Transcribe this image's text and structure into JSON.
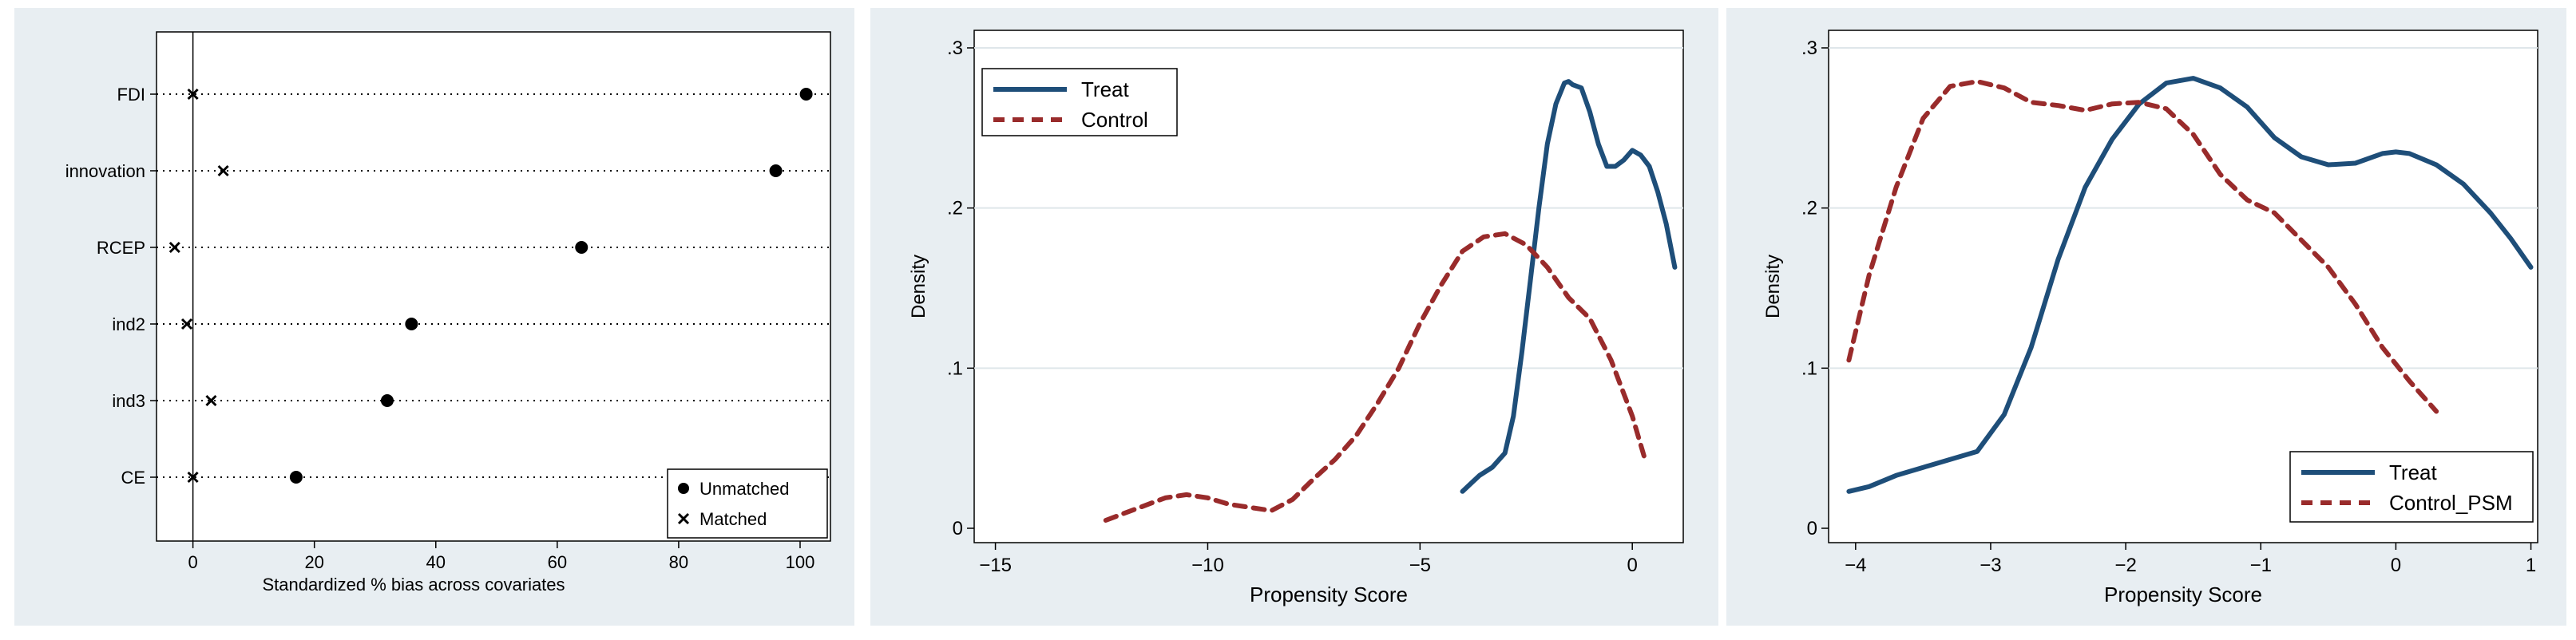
{
  "colors": {
    "background": "#e8eef2",
    "treat": "#1e4e79",
    "control": "#992b2b",
    "grid": "#dfe6ea"
  },
  "chart_data": [
    {
      "type": "scatter",
      "xlabel": "Standardized % bias across covariates",
      "ylabel": "",
      "xlim": [
        -6,
        105
      ],
      "xticks": [
        0,
        20,
        40,
        60,
        80,
        100
      ],
      "grid": false,
      "legend_position": "bottom-right",
      "categories": [
        "FDI",
        "innovation",
        "RCEP",
        "ind2",
        "ind3",
        "CE"
      ],
      "series": [
        {
          "name": "Unmatched",
          "marker": "circle",
          "values": [
            101,
            96,
            64,
            36,
            32,
            17
          ]
        },
        {
          "name": "Matched",
          "marker": "x",
          "values": [
            0,
            5,
            -3,
            -1,
            3,
            0
          ]
        }
      ]
    },
    {
      "type": "line",
      "xlabel": "Propensity Score",
      "ylabel": "Density",
      "xlim": [
        -15.5,
        1.2
      ],
      "ylim": [
        0,
        0.3
      ],
      "xticks": [
        -15,
        -10,
        -5,
        0
      ],
      "yticks": [
        0,
        0.1,
        0.2,
        0.3
      ],
      "grid": true,
      "legend_position": "top-left",
      "series": [
        {
          "name": "Treat",
          "style": "solid",
          "x": [
            -4.0,
            -3.8,
            -3.6,
            -3.3,
            -3.0,
            -2.8,
            -2.6,
            -2.4,
            -2.2,
            -2.0,
            -1.8,
            -1.6,
            -1.5,
            -1.4,
            -1.2,
            -1.0,
            -0.8,
            -0.6,
            -0.4,
            -0.2,
            0.0,
            0.2,
            0.4,
            0.6,
            0.8,
            1.0
          ],
          "y": [
            0.023,
            0.028,
            0.033,
            0.038,
            0.047,
            0.07,
            0.11,
            0.155,
            0.2,
            0.24,
            0.265,
            0.278,
            0.279,
            0.277,
            0.275,
            0.26,
            0.24,
            0.226,
            0.226,
            0.23,
            0.236,
            0.233,
            0.226,
            0.21,
            0.19,
            0.163
          ]
        },
        {
          "name": "Control",
          "style": "dashed",
          "x": [
            -12.4,
            -12.0,
            -11.5,
            -11.0,
            -10.5,
            -10.0,
            -9.5,
            -9.0,
            -8.5,
            -8.0,
            -7.5,
            -7.0,
            -6.5,
            -6.0,
            -5.5,
            -5.0,
            -4.5,
            -4.0,
            -3.5,
            -3.0,
            -2.5,
            -2.0,
            -1.5,
            -1.0,
            -0.5,
            0.0,
            0.3
          ],
          "y": [
            0.005,
            0.009,
            0.014,
            0.019,
            0.021,
            0.019,
            0.015,
            0.013,
            0.011,
            0.018,
            0.031,
            0.043,
            0.058,
            0.078,
            0.1,
            0.128,
            0.152,
            0.173,
            0.182,
            0.184,
            0.177,
            0.163,
            0.144,
            0.131,
            0.105,
            0.07,
            0.043
          ]
        }
      ]
    },
    {
      "type": "line",
      "xlabel": "Propensity Score",
      "ylabel": "Density",
      "xlim": [
        -4.2,
        1.05
      ],
      "ylim": [
        0,
        0.3
      ],
      "xticks": [
        -4,
        -3,
        -2,
        -1,
        0,
        1
      ],
      "yticks": [
        0,
        0.1,
        0.2,
        0.3
      ],
      "grid": true,
      "legend_position": "bottom-right",
      "series": [
        {
          "name": "Treat",
          "style": "solid",
          "x": [
            -4.05,
            -3.9,
            -3.7,
            -3.5,
            -3.3,
            -3.1,
            -2.9,
            -2.7,
            -2.5,
            -2.3,
            -2.1,
            -1.9,
            -1.7,
            -1.5,
            -1.3,
            -1.1,
            -0.9,
            -0.7,
            -0.5,
            -0.3,
            -0.1,
            0.0,
            0.1,
            0.3,
            0.5,
            0.7,
            0.85,
            1.0
          ],
          "y": [
            0.023,
            0.026,
            0.033,
            0.038,
            0.043,
            0.048,
            0.071,
            0.113,
            0.168,
            0.213,
            0.243,
            0.265,
            0.278,
            0.281,
            0.275,
            0.263,
            0.244,
            0.232,
            0.227,
            0.228,
            0.234,
            0.235,
            0.234,
            0.227,
            0.215,
            0.197,
            0.181,
            0.163
          ]
        },
        {
          "name": "Control_PSM",
          "style": "dashed",
          "x": [
            -4.05,
            -3.9,
            -3.7,
            -3.5,
            -3.3,
            -3.1,
            -2.9,
            -2.7,
            -2.5,
            -2.3,
            -2.1,
            -1.9,
            -1.7,
            -1.5,
            -1.3,
            -1.1,
            -0.9,
            -0.7,
            -0.5,
            -0.3,
            -0.1,
            0.1,
            0.3
          ],
          "y": [
            0.105,
            0.158,
            0.213,
            0.256,
            0.276,
            0.279,
            0.275,
            0.266,
            0.264,
            0.261,
            0.265,
            0.266,
            0.262,
            0.246,
            0.221,
            0.205,
            0.197,
            0.18,
            0.163,
            0.14,
            0.113,
            0.092,
            0.073
          ]
        }
      ]
    }
  ]
}
